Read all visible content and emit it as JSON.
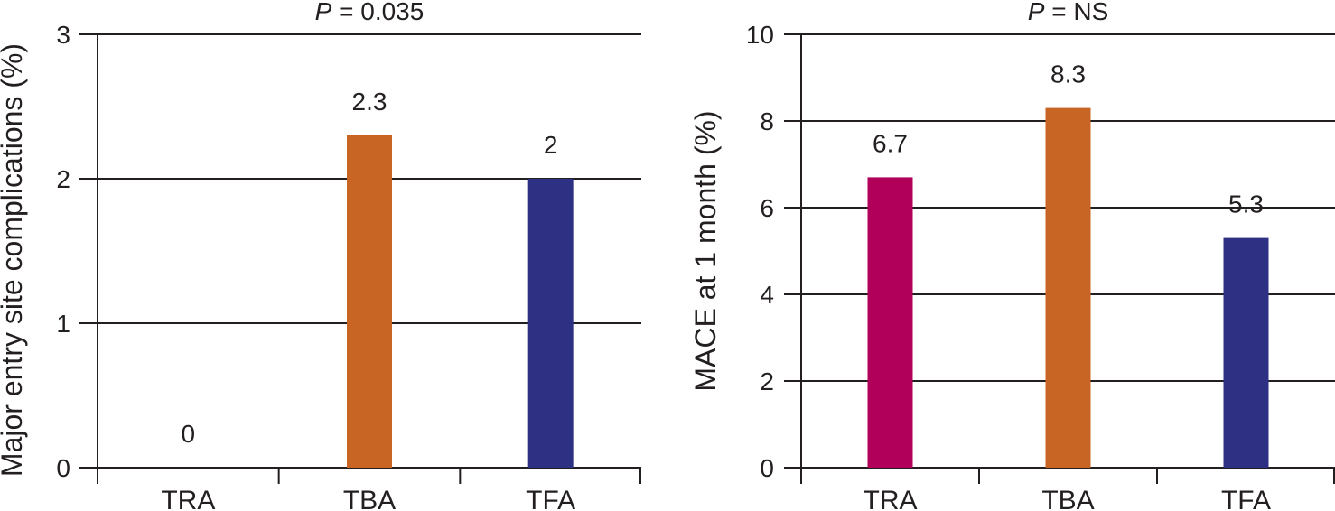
{
  "chart_data": [
    {
      "type": "bar",
      "title_p": "P",
      "title_rest": " = 0.035",
      "ylabel": "Major entry site complications (%)",
      "xlabel": "",
      "categories": [
        "TRA",
        "TBA",
        "TFA"
      ],
      "values": [
        0,
        2.3,
        2
      ],
      "value_labels": [
        "0",
        "2.3",
        "2"
      ],
      "colors": [
        "#b0005a",
        "#c86424",
        "#2e3084"
      ],
      "ylim": [
        0,
        3
      ],
      "yticks": [
        0,
        1,
        2,
        3
      ],
      "ytick_labels": [
        "0",
        "1",
        "2",
        "3"
      ],
      "grid": true
    },
    {
      "type": "bar",
      "title_p": "P",
      "title_rest": " = NS",
      "ylabel": "MACE at 1 month (%)",
      "xlabel": "",
      "categories": [
        "TRA",
        "TBA",
        "TFA"
      ],
      "values": [
        6.7,
        8.3,
        5.3
      ],
      "value_labels": [
        "6.7",
        "8.3",
        "5.3"
      ],
      "colors": [
        "#b0005a",
        "#c86424",
        "#2e3084"
      ],
      "ylim": [
        0,
        10
      ],
      "yticks": [
        0,
        2,
        4,
        6,
        8,
        10
      ],
      "ytick_labels": [
        "0",
        "2",
        "4",
        "6",
        "8",
        "10"
      ],
      "grid": true
    }
  ]
}
